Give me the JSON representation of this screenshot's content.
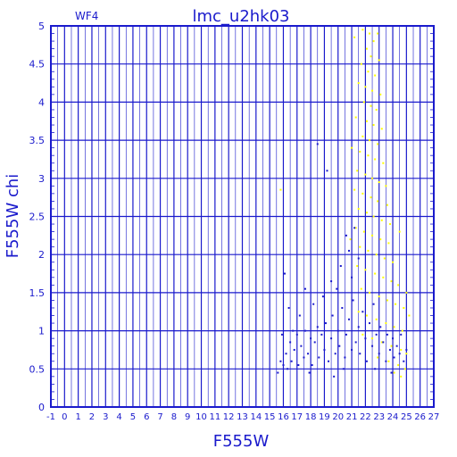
{
  "chart_data": {
    "type": "scatter",
    "title": "lmc_u2hk03",
    "subtitle": "WF4",
    "xlabel": "F555W",
    "ylabel": "F555W  chi",
    "xlim": [
      -1,
      27
    ],
    "ylim": [
      0,
      5
    ],
    "grid": true,
    "x_ticks": [
      "-1",
      "0",
      "1",
      "2",
      "3",
      "4",
      "5",
      "6",
      "7",
      "8",
      "9",
      "10",
      "11",
      "12",
      "13",
      "14",
      "15",
      "16",
      "17",
      "18",
      "19",
      "20",
      "21",
      "22",
      "23",
      "24",
      "25",
      "26",
      "27"
    ],
    "y_ticks": [
      "0",
      "0.5",
      "1",
      "1.5",
      "2",
      "2.5",
      "3",
      "3.5",
      "4",
      "4.5",
      "5"
    ],
    "series": [
      {
        "color": "#ffff00",
        "points": [
          [
            21.2,
            4.85
          ],
          [
            21.8,
            4.95
          ],
          [
            22.3,
            4.9
          ],
          [
            22.6,
            4.8
          ],
          [
            22.9,
            4.9
          ],
          [
            22.1,
            4.7
          ],
          [
            22.4,
            4.6
          ],
          [
            23.0,
            4.55
          ],
          [
            21.7,
            4.5
          ],
          [
            22.2,
            4.4
          ],
          [
            22.7,
            4.35
          ],
          [
            21.5,
            4.25
          ],
          [
            22.0,
            4.2
          ],
          [
            22.5,
            4.15
          ],
          [
            23.1,
            4.1
          ],
          [
            21.9,
            4.0
          ],
          [
            22.4,
            3.95
          ],
          [
            22.8,
            3.9
          ],
          [
            21.3,
            3.8
          ],
          [
            22.1,
            3.75
          ],
          [
            22.6,
            3.7
          ],
          [
            23.2,
            3.65
          ],
          [
            21.8,
            3.55
          ],
          [
            22.3,
            3.5
          ],
          [
            22.9,
            3.45
          ],
          [
            21.0,
            3.4
          ],
          [
            21.6,
            3.35
          ],
          [
            22.2,
            3.3
          ],
          [
            22.7,
            3.25
          ],
          [
            23.3,
            3.2
          ],
          [
            21.4,
            3.1
          ],
          [
            22.0,
            3.05
          ],
          [
            22.5,
            3.0
          ],
          [
            23.0,
            2.95
          ],
          [
            23.5,
            2.9
          ],
          [
            21.2,
            2.85
          ],
          [
            21.8,
            2.8
          ],
          [
            22.4,
            2.75
          ],
          [
            22.9,
            2.7
          ],
          [
            23.6,
            2.65
          ],
          [
            21.5,
            2.6
          ],
          [
            22.1,
            2.55
          ],
          [
            22.6,
            2.5
          ],
          [
            23.2,
            2.45
          ],
          [
            23.8,
            2.4
          ],
          [
            21.3,
            2.35
          ],
          [
            21.9,
            2.3
          ],
          [
            22.5,
            2.25
          ],
          [
            23.1,
            2.2
          ],
          [
            23.7,
            2.15
          ],
          [
            21.6,
            2.1
          ],
          [
            22.2,
            2.05
          ],
          [
            22.8,
            2.0
          ],
          [
            23.4,
            1.95
          ],
          [
            24.0,
            1.9
          ],
          [
            21.4,
            1.85
          ],
          [
            22.0,
            1.8
          ],
          [
            22.7,
            1.75
          ],
          [
            23.3,
            1.7
          ],
          [
            23.9,
            1.65
          ],
          [
            24.4,
            1.6
          ],
          [
            21.7,
            1.55
          ],
          [
            22.3,
            1.5
          ],
          [
            23.0,
            1.45
          ],
          [
            23.6,
            1.4
          ],
          [
            24.2,
            1.35
          ],
          [
            24.8,
            1.3
          ],
          [
            21.5,
            1.25
          ],
          [
            22.1,
            1.2
          ],
          [
            22.8,
            1.15
          ],
          [
            23.5,
            1.1
          ],
          [
            24.1,
            1.05
          ],
          [
            24.7,
            1.0
          ],
          [
            21.8,
            0.95
          ],
          [
            22.5,
            0.9
          ],
          [
            23.2,
            0.85
          ],
          [
            23.9,
            0.8
          ],
          [
            24.6,
            0.75
          ],
          [
            25.0,
            0.7
          ],
          [
            22.9,
            0.65
          ],
          [
            23.7,
            0.6
          ],
          [
            24.4,
            0.55
          ],
          [
            24.9,
            0.5
          ],
          [
            24.1,
            0.45
          ],
          [
            24.6,
            0.4
          ],
          [
            15.8,
            2.85
          ],
          [
            24.5,
            2.3
          ],
          [
            25.0,
            1.5
          ],
          [
            25.2,
            1.2
          ],
          [
            20.9,
            2.2
          ]
        ]
      },
      {
        "color": "#1a1acc",
        "points": [
          [
            15.6,
            0.45
          ],
          [
            15.8,
            0.6
          ],
          [
            16.0,
            0.55
          ],
          [
            16.2,
            0.7
          ],
          [
            16.3,
            0.5
          ],
          [
            16.5,
            0.85
          ],
          [
            16.6,
            0.6
          ],
          [
            16.8,
            0.75
          ],
          [
            17.0,
            0.95
          ],
          [
            17.1,
            0.55
          ],
          [
            17.3,
            0.8
          ],
          [
            17.5,
            0.65
          ],
          [
            17.6,
            1.0
          ],
          [
            17.8,
            0.7
          ],
          [
            18.0,
            0.9
          ],
          [
            18.1,
            0.55
          ],
          [
            18.3,
            0.85
          ],
          [
            18.5,
            1.05
          ],
          [
            18.6,
            0.65
          ],
          [
            18.8,
            0.95
          ],
          [
            19.0,
            0.75
          ],
          [
            19.1,
            1.1
          ],
          [
            19.3,
            0.6
          ],
          [
            19.5,
            0.9
          ],
          [
            19.6,
            1.2
          ],
          [
            19.8,
            0.7
          ],
          [
            20.0,
            1.0
          ],
          [
            20.1,
            0.8
          ],
          [
            20.3,
            1.3
          ],
          [
            20.5,
            0.65
          ],
          [
            20.6,
            0.95
          ],
          [
            20.8,
            1.15
          ],
          [
            21.0,
            0.75
          ],
          [
            21.1,
            1.4
          ],
          [
            21.3,
            0.85
          ],
          [
            21.5,
            1.05
          ],
          [
            21.6,
            0.7
          ],
          [
            21.8,
            1.25
          ],
          [
            22.0,
            0.9
          ],
          [
            22.1,
            0.6
          ],
          [
            22.3,
            1.1
          ],
          [
            22.5,
            0.8
          ],
          [
            22.6,
            1.35
          ],
          [
            22.8,
            0.95
          ],
          [
            23.0,
            0.7
          ],
          [
            23.1,
            1.05
          ],
          [
            23.3,
            0.85
          ],
          [
            23.5,
            0.6
          ],
          [
            23.6,
            0.95
          ],
          [
            23.8,
            0.75
          ],
          [
            24.0,
            0.9
          ],
          [
            24.1,
            0.65
          ],
          [
            24.3,
            0.8
          ],
          [
            24.5,
            0.7
          ],
          [
            24.6,
            0.95
          ],
          [
            24.8,
            0.6
          ],
          [
            25.0,
            0.75
          ],
          [
            16.1,
            1.75
          ],
          [
            17.6,
            1.55
          ],
          [
            18.2,
            1.35
          ],
          [
            19.5,
            1.65
          ],
          [
            20.2,
            1.85
          ],
          [
            20.8,
            2.05
          ],
          [
            21.2,
            2.35
          ],
          [
            21.5,
            1.95
          ],
          [
            17.2,
            1.2
          ],
          [
            18.9,
            1.45
          ],
          [
            19.9,
            1.55
          ],
          [
            20.6,
            2.25
          ],
          [
            21.0,
            1.7
          ],
          [
            18.5,
            3.45
          ],
          [
            19.2,
            3.1
          ],
          [
            16.7,
            1.0
          ],
          [
            17.9,
            0.45
          ],
          [
            19.7,
            0.4
          ],
          [
            20.4,
            0.5
          ],
          [
            22.7,
            0.5
          ],
          [
            23.9,
            0.45
          ],
          [
            15.9,
            0.95
          ],
          [
            16.4,
            1.3
          ]
        ]
      }
    ]
  }
}
